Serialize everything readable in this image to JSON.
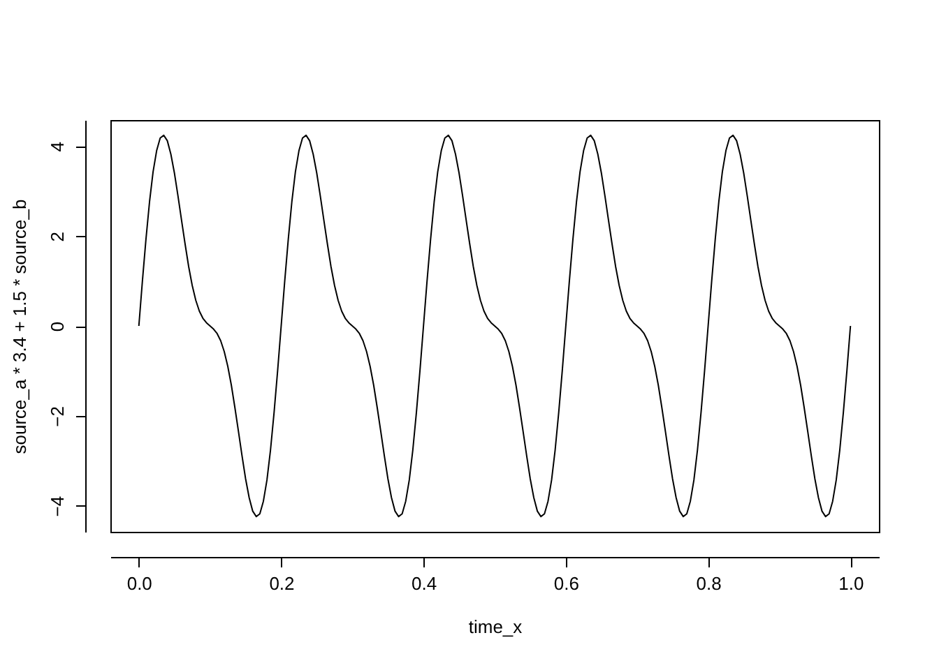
{
  "chart_data": {
    "type": "line",
    "xlabel": "time_x",
    "ylabel": "source_a * 3.4 + 1.5 * source_b",
    "x": [
      0,
      0.005,
      0.01,
      0.015,
      0.02,
      0.025,
      0.03,
      0.035,
      0.04,
      0.045,
      0.05,
      0.055,
      0.06,
      0.065,
      0.07,
      0.075,
      0.08,
      0.085,
      0.09,
      0.095,
      0.1,
      0.105,
      0.11,
      0.115,
      0.12,
      0.125,
      0.13,
      0.135,
      0.14,
      0.145,
      0.15,
      0.155,
      0.16,
      0.165,
      0.17,
      0.175,
      0.18,
      0.185,
      0.19,
      0.195,
      0.2,
      0.205,
      0.21,
      0.215,
      0.22,
      0.225,
      0.23,
      0.235,
      0.24,
      0.245,
      0.25,
      0.255,
      0.26,
      0.265,
      0.27,
      0.275,
      0.28,
      0.285,
      0.29,
      0.295,
      0.3,
      0.305,
      0.31,
      0.315,
      0.32,
      0.325,
      0.33,
      0.335,
      0.34,
      0.345,
      0.35,
      0.355,
      0.36,
      0.365,
      0.37,
      0.375,
      0.38,
      0.385,
      0.39,
      0.395,
      0.4,
      0.405,
      0.41,
      0.415,
      0.42,
      0.425,
      0.43,
      0.435,
      0.44,
      0.445,
      0.45,
      0.455,
      0.46,
      0.465,
      0.47,
      0.475,
      0.48,
      0.485,
      0.49,
      0.495,
      0.5,
      0.505,
      0.51,
      0.515,
      0.52,
      0.525,
      0.53,
      0.535,
      0.54,
      0.545,
      0.55,
      0.555,
      0.56,
      0.565,
      0.57,
      0.575,
      0.58,
      0.585,
      0.59,
      0.595,
      0.6,
      0.605,
      0.61,
      0.615,
      0.62,
      0.625,
      0.63,
      0.635,
      0.64,
      0.645,
      0.65,
      0.655,
      0.66,
      0.665,
      0.67,
      0.675,
      0.68,
      0.685,
      0.69,
      0.695,
      0.7,
      0.705,
      0.71,
      0.715,
      0.72,
      0.725,
      0.73,
      0.735,
      0.74,
      0.745,
      0.75,
      0.755,
      0.76,
      0.765,
      0.77,
      0.775,
      0.78,
      0.785,
      0.79,
      0.795,
      0.8,
      0.805,
      0.81,
      0.815,
      0.82,
      0.825,
      0.83,
      0.835,
      0.84,
      0.845,
      0.85,
      0.855,
      0.86,
      0.865,
      0.87,
      0.875,
      0.88,
      0.885,
      0.89,
      0.895,
      0.9,
      0.905,
      0.91,
      0.915,
      0.92,
      0.925,
      0.93,
      0.935,
      0.94,
      0.945,
      0.95,
      0.955,
      0.96,
      0.965,
      0.97,
      0.975,
      0.98,
      0.985,
      0.99,
      0.995,
      1.0
    ],
    "series": [
      {
        "color": "#000000",
        "values": [
          0,
          1.0,
          1.93,
          2.76,
          3.43,
          3.9,
          4.18,
          4.24,
          4.12,
          3.82,
          3.4,
          2.89,
          2.35,
          1.82,
          1.32,
          0.9,
          0.57,
          0.33,
          0.17,
          0.07,
          0,
          -0.07,
          -0.17,
          -0.33,
          -0.57,
          -0.9,
          -1.32,
          -1.82,
          -2.35,
          -2.89,
          -3.4,
          -3.82,
          -4.12,
          -4.24,
          -4.18,
          -3.9,
          -3.43,
          -2.76,
          -1.93,
          -1.0,
          0,
          1.0,
          1.93,
          2.76,
          3.43,
          3.9,
          4.18,
          4.24,
          4.12,
          3.82,
          3.4,
          2.89,
          2.35,
          1.82,
          1.32,
          0.9,
          0.57,
          0.33,
          0.17,
          0.07,
          0,
          -0.07,
          -0.17,
          -0.33,
          -0.57,
          -0.9,
          -1.32,
          -1.82,
          -2.35,
          -2.89,
          -3.4,
          -3.82,
          -4.12,
          -4.24,
          -4.18,
          -3.9,
          -3.43,
          -2.76,
          -1.93,
          -1.0,
          0,
          1.0,
          1.93,
          2.76,
          3.43,
          3.9,
          4.18,
          4.24,
          4.12,
          3.82,
          3.4,
          2.89,
          2.35,
          1.82,
          1.32,
          0.9,
          0.57,
          0.33,
          0.17,
          0.07,
          0,
          -0.07,
          -0.17,
          -0.33,
          -0.57,
          -0.9,
          -1.32,
          -1.82,
          -2.35,
          -2.89,
          -3.4,
          -3.82,
          -4.12,
          -4.24,
          -4.18,
          -3.9,
          -3.43,
          -2.76,
          -1.93,
          -1.0,
          0,
          1.0,
          1.93,
          2.76,
          3.43,
          3.9,
          4.18,
          4.24,
          4.12,
          3.82,
          3.4,
          2.89,
          2.35,
          1.82,
          1.32,
          0.9,
          0.57,
          0.33,
          0.17,
          0.07,
          0,
          -0.07,
          -0.17,
          -0.33,
          -0.57,
          -0.9,
          -1.32,
          -1.82,
          -2.35,
          -2.89,
          -3.4,
          -3.82,
          -4.12,
          -4.24,
          -4.18,
          -3.9,
          -3.43,
          -2.76,
          -1.93,
          -1.0,
          0,
          1.0,
          1.93,
          2.76,
          3.43,
          3.9,
          4.18,
          4.24,
          4.12,
          3.82,
          3.4,
          2.89,
          2.35,
          1.82,
          1.32,
          0.9,
          0.57,
          0.33,
          0.17,
          0.07,
          0,
          -0.07,
          -0.17,
          -0.33,
          -0.57,
          -0.9,
          -1.32,
          -1.82,
          -2.35,
          -2.89,
          -3.4,
          -3.82,
          -4.12,
          -4.24,
          -4.18,
          -3.9,
          -3.43,
          -2.76,
          -1.93,
          -1.0,
          0
        ]
      }
    ],
    "xlim": [
      -0.04,
      1.04
    ],
    "ylim": [
      -4.58,
      4.58
    ],
    "xticks": [
      {
        "value": 0,
        "label": "0.0"
      },
      {
        "value": 0.2,
        "label": "0.2"
      },
      {
        "value": 0.4,
        "label": "0.4"
      },
      {
        "value": 0.6,
        "label": "0.6"
      },
      {
        "value": 0.8,
        "label": "0.8"
      },
      {
        "value": 1.0,
        "label": "1.0"
      }
    ],
    "yticks": [
      -4,
      -2,
      0,
      2,
      4
    ],
    "grid": false,
    "marker": "none",
    "line_style": "solid"
  }
}
